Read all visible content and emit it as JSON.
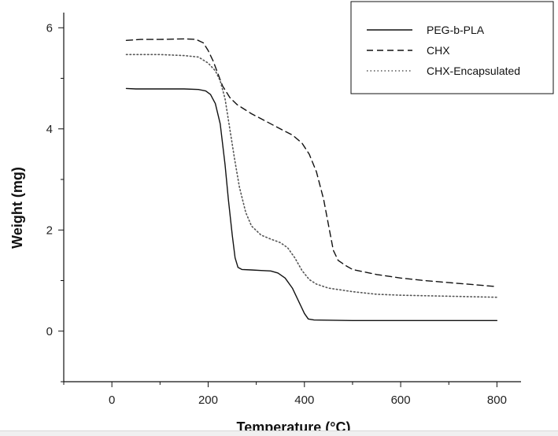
{
  "chart_data": {
    "type": "line",
    "xlabel": "Temperature (°C)",
    "ylabel": "Weight  (mg)",
    "xlim": [
      -100,
      850
    ],
    "ylim": [
      -1,
      6.3
    ],
    "xticks": [
      0,
      200,
      400,
      600,
      800
    ],
    "yticks": [
      0,
      2,
      4,
      6
    ],
    "x_tick_labels": [
      "0",
      "200",
      "400",
      "600",
      "800"
    ],
    "y_tick_labels": [
      "0",
      "2",
      "4",
      "6"
    ],
    "grid": false,
    "legend_position": "top-right",
    "series": [
      {
        "name": "PEG-b-PLA",
        "style": "solid",
        "color": "#111111",
        "points": [
          [
            30,
            4.8
          ],
          [
            50,
            4.79
          ],
          [
            100,
            4.79
          ],
          [
            150,
            4.79
          ],
          [
            180,
            4.78
          ],
          [
            195,
            4.75
          ],
          [
            205,
            4.68
          ],
          [
            215,
            4.5
          ],
          [
            225,
            4.1
          ],
          [
            235,
            3.3
          ],
          [
            242,
            2.6
          ],
          [
            250,
            1.9
          ],
          [
            256,
            1.45
          ],
          [
            262,
            1.26
          ],
          [
            270,
            1.22
          ],
          [
            290,
            1.21
          ],
          [
            310,
            1.2
          ],
          [
            330,
            1.19
          ],
          [
            345,
            1.15
          ],
          [
            360,
            1.05
          ],
          [
            375,
            0.85
          ],
          [
            390,
            0.55
          ],
          [
            400,
            0.35
          ],
          [
            408,
            0.24
          ],
          [
            420,
            0.22
          ],
          [
            500,
            0.21
          ],
          [
            600,
            0.21
          ],
          [
            700,
            0.21
          ],
          [
            800,
            0.21
          ]
        ]
      },
      {
        "name": "CHX",
        "style": "dashed",
        "color": "#111111",
        "points": [
          [
            30,
            5.75
          ],
          [
            60,
            5.77
          ],
          [
            100,
            5.77
          ],
          [
            150,
            5.78
          ],
          [
            175,
            5.77
          ],
          [
            190,
            5.7
          ],
          [
            200,
            5.55
          ],
          [
            210,
            5.35
          ],
          [
            220,
            5.1
          ],
          [
            230,
            4.85
          ],
          [
            245,
            4.62
          ],
          [
            260,
            4.48
          ],
          [
            290,
            4.3
          ],
          [
            320,
            4.15
          ],
          [
            350,
            4.0
          ],
          [
            375,
            3.88
          ],
          [
            395,
            3.72
          ],
          [
            410,
            3.5
          ],
          [
            425,
            3.15
          ],
          [
            440,
            2.6
          ],
          [
            452,
            2.0
          ],
          [
            460,
            1.6
          ],
          [
            470,
            1.4
          ],
          [
            485,
            1.3
          ],
          [
            500,
            1.22
          ],
          [
            550,
            1.12
          ],
          [
            600,
            1.05
          ],
          [
            650,
            1.0
          ],
          [
            700,
            0.96
          ],
          [
            750,
            0.92
          ],
          [
            800,
            0.88
          ]
        ]
      },
      {
        "name": "CHX-Encapsulated",
        "style": "dotted",
        "color": "#555555",
        "points": [
          [
            30,
            5.47
          ],
          [
            60,
            5.47
          ],
          [
            100,
            5.47
          ],
          [
            150,
            5.45
          ],
          [
            180,
            5.42
          ],
          [
            200,
            5.3
          ],
          [
            215,
            5.15
          ],
          [
            225,
            4.95
          ],
          [
            235,
            4.6
          ],
          [
            245,
            4.0
          ],
          [
            255,
            3.4
          ],
          [
            265,
            2.85
          ],
          [
            278,
            2.35
          ],
          [
            290,
            2.08
          ],
          [
            310,
            1.9
          ],
          [
            330,
            1.82
          ],
          [
            350,
            1.75
          ],
          [
            365,
            1.65
          ],
          [
            380,
            1.45
          ],
          [
            395,
            1.2
          ],
          [
            410,
            1.02
          ],
          [
            425,
            0.93
          ],
          [
            450,
            0.85
          ],
          [
            500,
            0.78
          ],
          [
            550,
            0.73
          ],
          [
            600,
            0.71
          ],
          [
            700,
            0.69
          ],
          [
            800,
            0.67
          ]
        ]
      }
    ]
  }
}
